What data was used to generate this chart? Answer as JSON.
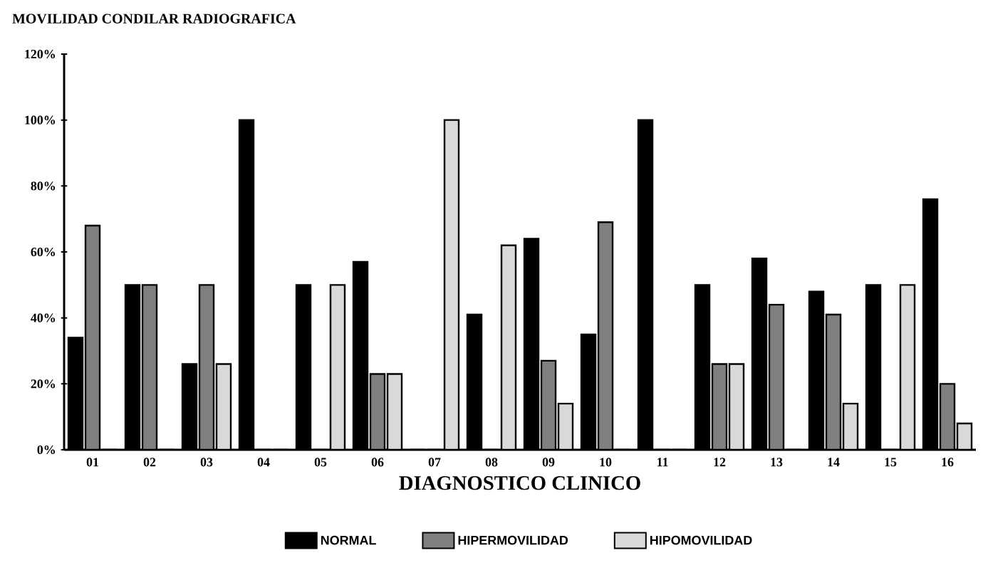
{
  "chart_data": {
    "type": "bar",
    "title": "MOVILIDAD CONDILAR RADIOGRAFICA",
    "xlabel": "DIAGNOSTICO CLINICO",
    "categories": [
      "01",
      "02",
      "03",
      "04",
      "05",
      "06",
      "07",
      "08",
      "09",
      "10",
      "11",
      "12",
      "13",
      "14",
      "15",
      "16"
    ],
    "series": [
      {
        "name": "NORMAL",
        "color": "#000000",
        "values": [
          34,
          50,
          26,
          100,
          50,
          57,
          0,
          41,
          64,
          35,
          100,
          50,
          58,
          48,
          50,
          76
        ]
      },
      {
        "name": "HIPERMOVILIDAD",
        "color": "#808080",
        "values": [
          68,
          50,
          50,
          0,
          0,
          23,
          0,
          0,
          27,
          69,
          0,
          26,
          44,
          41,
          0,
          20
        ]
      },
      {
        "name": "HIPOMOVILIDAD",
        "color": "#d9d9d9",
        "values": [
          0,
          0,
          26,
          0,
          50,
          23,
          100,
          62,
          14,
          0,
          0,
          26,
          0,
          14,
          50,
          8
        ]
      }
    ],
    "ylim": [
      0,
      120
    ],
    "yticks": [
      {
        "value": 0,
        "label": "0%"
      },
      {
        "value": 20,
        "label": "20%"
      },
      {
        "value": 40,
        "label": "40%"
      },
      {
        "value": 60,
        "label": "60%"
      },
      {
        "value": 80,
        "label": "80%"
      },
      {
        "value": 100,
        "label": "100%"
      },
      {
        "value": 120,
        "label": "120%"
      }
    ],
    "legend": "bottom",
    "grid": false
  }
}
